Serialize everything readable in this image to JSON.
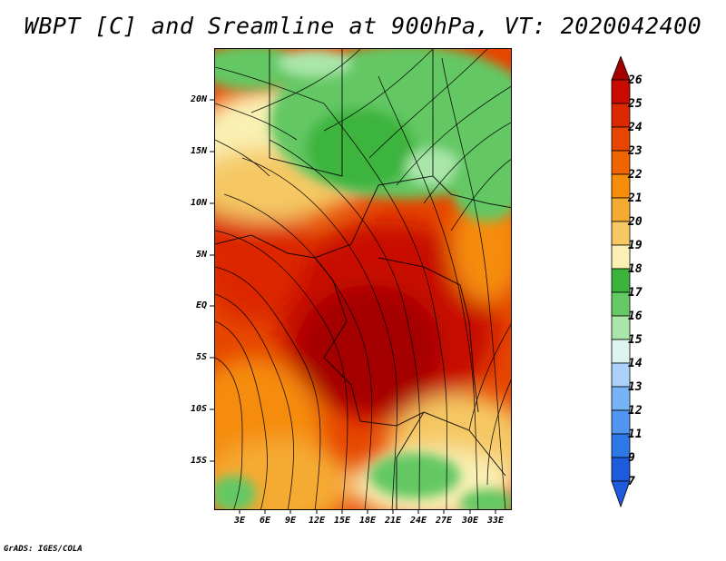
{
  "title": "WBPT [C] and Sreamline at 900hPa, VT: 2020042400",
  "footer": "GrADS: IGES/COLA",
  "map": {
    "lat_labels": [
      "20N",
      "15N",
      "10N",
      "5N",
      "EQ",
      "5S",
      "10S",
      "15S"
    ],
    "lon_labels": [
      "3E",
      "6E",
      "9E",
      "12E",
      "15E",
      "18E",
      "21E",
      "24E",
      "27E",
      "30E",
      "33E"
    ]
  },
  "colorbar": {
    "levels": [
      "26",
      "25",
      "24",
      "23",
      "22",
      "21",
      "20",
      "19",
      "18",
      "17",
      "16",
      "15",
      "14",
      "13",
      "12",
      "11",
      "9",
      "7"
    ],
    "colors": [
      "#a50000",
      "#c80a00",
      "#dc2800",
      "#e64600",
      "#f06400",
      "#f58c0a",
      "#f5aa32",
      "#f5c864",
      "#faf0b4",
      "#3cb43c",
      "#64c864",
      "#aae6aa",
      "#dcf5f0",
      "#aad2fa",
      "#78b4f5",
      "#5096f0",
      "#2d78e6",
      "#1e5adc"
    ]
  }
}
